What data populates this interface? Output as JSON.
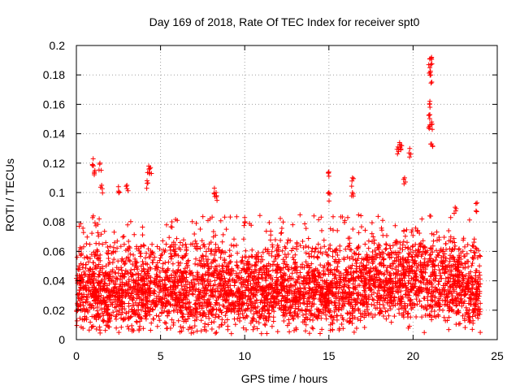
{
  "chart_data": {
    "type": "scatter",
    "title": "Day 169 of 2018, Rate Of TEC Index for receiver spt0",
    "xlabel": "GPS time / hours",
    "ylabel": "ROTI / TECUs",
    "xlim": [
      0,
      25
    ],
    "ylim": [
      0,
      0.2
    ],
    "x_ticks": [
      0,
      5,
      10,
      15,
      20,
      25
    ],
    "y_ticks": [
      0,
      0.02,
      0.04,
      0.06,
      0.08,
      0.1,
      0.12,
      0.14,
      0.16,
      0.18,
      0.2
    ],
    "x_tick_labels": [
      "0",
      "5",
      "10",
      "15",
      "20",
      "25"
    ],
    "y_tick_labels": [
      "0",
      "0.02",
      "0.04",
      "0.06",
      "0.08",
      "0.1",
      "0.12",
      "0.14",
      "0.16",
      "0.18",
      "0.2"
    ],
    "grid": true,
    "marker": "+",
    "color": "#ff0000",
    "data_range_x": [
      0,
      24
    ],
    "typical_range_y": [
      0.005,
      0.07
    ],
    "notable_points": [
      {
        "x": 1.0,
        "y": 0.123
      },
      {
        "x": 1.1,
        "y": 0.115
      },
      {
        "x": 1.4,
        "y": 0.12
      },
      {
        "x": 1.5,
        "y": 0.105
      },
      {
        "x": 2.5,
        "y": 0.104
      },
      {
        "x": 3.0,
        "y": 0.105
      },
      {
        "x": 4.3,
        "y": 0.118
      },
      {
        "x": 4.4,
        "y": 0.117
      },
      {
        "x": 4.2,
        "y": 0.108
      },
      {
        "x": 8.2,
        "y": 0.103
      },
      {
        "x": 8.3,
        "y": 0.1
      },
      {
        "x": 10.0,
        "y": 0.083
      },
      {
        "x": 15.0,
        "y": 0.114
      },
      {
        "x": 15.0,
        "y": 0.1
      },
      {
        "x": 16.4,
        "y": 0.11
      },
      {
        "x": 16.4,
        "y": 0.1
      },
      {
        "x": 19.1,
        "y": 0.131
      },
      {
        "x": 19.2,
        "y": 0.134
      },
      {
        "x": 19.3,
        "y": 0.132
      },
      {
        "x": 19.8,
        "y": 0.13
      },
      {
        "x": 19.5,
        "y": 0.11
      },
      {
        "x": 21.0,
        "y": 0.191
      },
      {
        "x": 21.1,
        "y": 0.192
      },
      {
        "x": 21.0,
        "y": 0.185
      },
      {
        "x": 21.05,
        "y": 0.18
      },
      {
        "x": 21.0,
        "y": 0.162
      },
      {
        "x": 21.0,
        "y": 0.153
      },
      {
        "x": 21.1,
        "y": 0.148
      },
      {
        "x": 21.0,
        "y": 0.146
      },
      {
        "x": 21.1,
        "y": 0.133
      },
      {
        "x": 23.8,
        "y": 0.093
      },
      {
        "x": 22.5,
        "y": 0.09
      }
    ]
  }
}
